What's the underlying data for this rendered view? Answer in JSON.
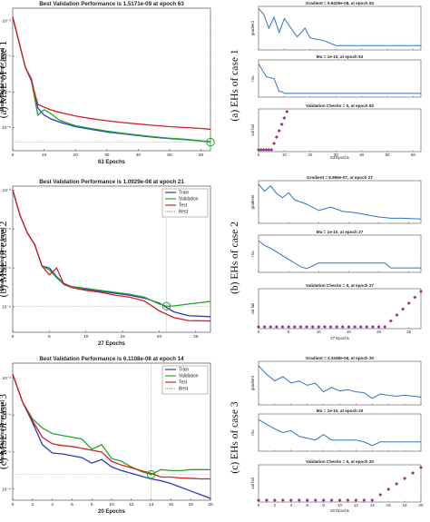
{
  "chart_data": [
    {
      "id": "mse1",
      "type": "line",
      "title": "Best Validation Performance is 1.5171e-09 at epoch 63",
      "side_label": "(a) MSE of Case 1",
      "xlabel": "63 Epochs",
      "ylabel": "Mean Squared Error  (mse)",
      "xlim": [
        0,
        63
      ],
      "ylim_log10": [
        -9.3,
        -1.3
      ],
      "log_y": true,
      "xticks": [
        0,
        10,
        20,
        30,
        40,
        50,
        60
      ],
      "yticks": [
        {
          "v": -2,
          "label": "10⁻²"
        },
        {
          "v": -4,
          "label": "10⁻⁴"
        },
        {
          "v": -6,
          "label": "10⁻⁶"
        },
        {
          "v": -8,
          "label": "10⁻⁸"
        }
      ],
      "legend": [],
      "best_epoch": 63,
      "best_value_log10": -8.82,
      "colors": {
        "Train": "#2b3cb4",
        "Validation": "#22a52e",
        "Test": "#d61f26",
        "Best": "#9a9a9a"
      },
      "series": [
        {
          "name": "Train",
          "x": [
            0,
            2,
            4,
            6,
            8,
            10,
            12,
            15,
            20,
            25,
            30,
            35,
            40,
            45,
            50,
            55,
            60,
            63
          ],
          "y": [
            -1.8,
            -3.2,
            -4.6,
            -5.3,
            -6.9,
            -7.3,
            -7.5,
            -7.7,
            -7.95,
            -8.1,
            -8.25,
            -8.35,
            -8.45,
            -8.55,
            -8.62,
            -8.68,
            -8.75,
            -8.8
          ]
        },
        {
          "name": "Validation",
          "x": [
            0,
            2,
            4,
            6,
            8,
            10,
            12,
            15,
            20,
            25,
            30,
            35,
            40,
            45,
            50,
            55,
            60,
            63
          ],
          "y": [
            -1.8,
            -3.2,
            -4.6,
            -5.4,
            -7.3,
            -7.0,
            -7.2,
            -7.6,
            -7.9,
            -8.05,
            -8.2,
            -8.32,
            -8.42,
            -8.52,
            -8.6,
            -8.66,
            -8.74,
            -8.82
          ]
        },
        {
          "name": "Test",
          "x": [
            0,
            2,
            4,
            6,
            8,
            10,
            12,
            15,
            20,
            25,
            30,
            35,
            40,
            45,
            50,
            55,
            60,
            63
          ],
          "y": [
            -1.8,
            -3.2,
            -4.6,
            -5.4,
            -6.7,
            -6.85,
            -7.0,
            -7.15,
            -7.35,
            -7.5,
            -7.62,
            -7.72,
            -7.8,
            -7.88,
            -7.95,
            -8.0,
            -8.05,
            -8.1
          ]
        }
      ]
    },
    {
      "id": "mse2",
      "type": "line",
      "title": "Best Validation Performance is 1.0929e-08 at epoch 21",
      "side_label": "(b) MSE of case 2",
      "xlabel": "27 Epochs",
      "ylabel": "Mean Squared Error  (mse)",
      "xlim": [
        0,
        27
      ],
      "ylim_log10": [
        -9.3,
        -1.8
      ],
      "log_y": true,
      "xticks": [
        0,
        5,
        10,
        15,
        20,
        25
      ],
      "yticks": [
        {
          "v": -2,
          "label": "10⁻²"
        },
        {
          "v": -4,
          "label": "10⁻⁴"
        },
        {
          "v": -6,
          "label": "10⁻⁶"
        },
        {
          "v": -8,
          "label": "10⁻⁸"
        }
      ],
      "legend": [
        "Train",
        "Validation",
        "Test",
        "Best"
      ],
      "best_epoch": 21,
      "best_value_log10": -7.96,
      "colors": {
        "Train": "#2b3cb4",
        "Validation": "#22a52e",
        "Test": "#d61f26",
        "Best": "#9a9a9a"
      },
      "series": [
        {
          "name": "Train",
          "x": [
            0,
            1,
            2,
            3,
            4,
            5,
            6,
            7,
            8,
            10,
            12,
            14,
            16,
            18,
            20,
            22,
            24,
            27
          ],
          "y": [
            -2.0,
            -3.3,
            -4.2,
            -4.8,
            -5.9,
            -6.0,
            -6.45,
            -6.8,
            -6.95,
            -7.1,
            -7.2,
            -7.3,
            -7.4,
            -7.55,
            -7.8,
            -8.25,
            -8.45,
            -8.5
          ]
        },
        {
          "name": "Validation",
          "x": [
            0,
            1,
            2,
            3,
            4,
            5,
            6,
            7,
            8,
            10,
            12,
            14,
            16,
            18,
            20,
            21,
            22,
            24,
            27
          ],
          "y": [
            -2.0,
            -3.3,
            -4.2,
            -4.8,
            -5.9,
            -6.1,
            -6.5,
            -6.85,
            -6.95,
            -7.05,
            -7.15,
            -7.25,
            -7.35,
            -7.5,
            -7.85,
            -7.96,
            -7.95,
            -7.85,
            -7.72
          ]
        },
        {
          "name": "Test",
          "x": [
            0,
            1,
            2,
            3,
            4,
            5,
            6,
            7,
            8,
            10,
            12,
            14,
            16,
            18,
            20,
            22,
            24,
            27
          ],
          "y": [
            -2.0,
            -3.3,
            -4.2,
            -4.8,
            -5.9,
            -6.35,
            -6.0,
            -6.85,
            -7.0,
            -7.15,
            -7.25,
            -7.4,
            -7.5,
            -7.7,
            -8.2,
            -8.55,
            -8.7,
            -8.72
          ]
        }
      ]
    },
    {
      "id": "mse3",
      "type": "line",
      "title": "Best Validation Performance is 6.1108e-08 at epoch 14",
      "side_label": "(c) MSE of case 3",
      "xlabel": "20 Epochs",
      "ylabel": "Mean Squared Error  (mse)",
      "xlim": [
        0,
        20
      ],
      "ylim_log10": [
        -8.6,
        -1.2
      ],
      "log_y": true,
      "xticks": [
        0,
        2,
        4,
        6,
        8,
        10,
        12,
        14,
        16,
        18,
        20
      ],
      "yticks": [
        {
          "v": -2,
          "label": "10⁻²"
        },
        {
          "v": -4,
          "label": "10⁻⁴"
        },
        {
          "v": -6,
          "label": "10⁻⁶"
        },
        {
          "v": -8,
          "label": "10⁻⁸"
        }
      ],
      "legend": [
        "Train",
        "Validation",
        "Test",
        "Best"
      ],
      "best_epoch": 14,
      "best_value_log10": -7.21,
      "colors": {
        "Train": "#2b3cb4",
        "Validation": "#22a52e",
        "Test": "#d61f26",
        "Best": "#9a9a9a"
      },
      "series": [
        {
          "name": "Train",
          "x": [
            0,
            1,
            2,
            3,
            4,
            5,
            6,
            7,
            8,
            9,
            10,
            11,
            12,
            13,
            14,
            15,
            16,
            17,
            18,
            19,
            20
          ],
          "y": [
            -1.8,
            -3.3,
            -4.4,
            -5.6,
            -6.05,
            -6.1,
            -6.2,
            -6.3,
            -6.6,
            -6.4,
            -6.8,
            -7.0,
            -7.15,
            -7.3,
            -7.45,
            -7.55,
            -7.7,
            -7.9,
            -8.1,
            -8.3,
            -8.5
          ]
        },
        {
          "name": "Validation",
          "x": [
            0,
            1,
            2,
            3,
            4,
            5,
            6,
            7,
            8,
            9,
            10,
            11,
            12,
            13,
            14,
            15,
            16,
            17,
            18,
            19,
            20
          ],
          "y": [
            -1.8,
            -3.3,
            -4.2,
            -4.7,
            -5.0,
            -5.1,
            -5.2,
            -5.3,
            -5.85,
            -5.6,
            -6.35,
            -6.5,
            -6.8,
            -7.05,
            -7.21,
            -6.95,
            -7.0,
            -7.0,
            -6.95,
            -6.95,
            -6.95
          ]
        },
        {
          "name": "Test",
          "x": [
            0,
            1,
            2,
            3,
            4,
            5,
            6,
            7,
            8,
            9,
            10,
            11,
            12,
            13,
            14,
            15,
            16,
            17,
            18,
            19,
            20
          ],
          "y": [
            -1.8,
            -3.3,
            -4.3,
            -5.2,
            -5.55,
            -5.65,
            -5.7,
            -5.8,
            -5.9,
            -6.0,
            -6.5,
            -6.7,
            -6.85,
            -7.0,
            -7.15,
            -7.35,
            -7.35,
            -7.4,
            -7.42,
            -7.45,
            -7.45
          ]
        }
      ]
    }
  ],
  "eh_data": [
    {
      "id": "eh1",
      "side_label": "(a) EHs of case 1",
      "xlabel": "63 Epochs",
      "xlim": [
        0,
        63
      ],
      "xticks": [
        0,
        10,
        20,
        30,
        40,
        50,
        60
      ],
      "gradient": {
        "title": "Gradient = 9.8428e-08, at epoch 63",
        "ylabel": "gradient",
        "x": [
          0,
          2,
          4,
          6,
          8,
          10,
          12,
          15,
          18,
          20,
          22,
          25,
          28,
          30,
          35,
          40,
          50,
          63
        ],
        "y": [
          0.95,
          0.82,
          0.5,
          0.75,
          0.4,
          0.72,
          0.55,
          0.3,
          0.5,
          0.28,
          0.25,
          0.22,
          0.15,
          0.1,
          0.1,
          0.1,
          0.1,
          0.1
        ]
      },
      "mu": {
        "title": "Mu = 1e-10, at epoch 63",
        "ylabel": "mu",
        "x": [
          0,
          3,
          6,
          8,
          9,
          10,
          11,
          12,
          63
        ],
        "y": [
          0.9,
          0.55,
          0.5,
          0.15,
          0.15,
          0.1,
          0.1,
          0.1,
          0.1
        ]
      },
      "checks": {
        "title": "Validation Checks = 0, at epoch 63",
        "ylabel": "val fail",
        "x": [
          0,
          1,
          2,
          3,
          4,
          5,
          6,
          7,
          8,
          9,
          10,
          11
        ],
        "y": [
          0,
          0,
          0,
          0,
          0,
          0,
          1,
          2,
          3,
          4,
          5,
          6
        ],
        "ymax": 6
      }
    },
    {
      "id": "eh2",
      "side_label": "(b) EHs of case 2",
      "xlabel": "27 Epochs",
      "xlim": [
        0,
        27
      ],
      "xticks": [
        0,
        5,
        10,
        15,
        20,
        25
      ],
      "gradient": {
        "title": "Gradient = 9.996e-07, at epoch 27",
        "ylabel": "gradient",
        "x": [
          0,
          1,
          2,
          3,
          4,
          5,
          6,
          7,
          8,
          10,
          12,
          14,
          16,
          18,
          20,
          22,
          24,
          27
        ],
        "y": [
          0.92,
          0.75,
          0.88,
          0.7,
          0.6,
          0.72,
          0.55,
          0.5,
          0.45,
          0.3,
          0.38,
          0.28,
          0.25,
          0.2,
          0.15,
          0.12,
          0.12,
          0.1
        ]
      },
      "mu": {
        "title": "Mu = 1e-10, at epoch 27",
        "ylabel": "mu",
        "x": [
          0,
          1,
          2,
          3,
          4,
          5,
          6,
          7,
          8,
          10,
          12,
          14,
          16,
          18,
          20,
          21,
          22,
          24,
          27
        ],
        "y": [
          0.85,
          0.72,
          0.65,
          0.55,
          0.45,
          0.35,
          0.25,
          0.15,
          0.1,
          0.25,
          0.25,
          0.25,
          0.25,
          0.25,
          0.25,
          0.25,
          0.12,
          0.12,
          0.12
        ]
      },
      "checks": {
        "title": "Validation Checks = 6, at epoch 27",
        "ylabel": "val fail",
        "x": [
          0,
          1,
          2,
          3,
          4,
          5,
          6,
          7,
          8,
          9,
          10,
          11,
          12,
          13,
          14,
          15,
          16,
          17,
          18,
          19,
          20,
          21,
          22,
          23,
          24,
          25,
          26,
          27
        ],
        "y": [
          0,
          0,
          0,
          0,
          0,
          0,
          0,
          0,
          0,
          0,
          0,
          0,
          0,
          0,
          0,
          0,
          0,
          0,
          0,
          0,
          0,
          0,
          1,
          2,
          3,
          4,
          5,
          6
        ],
        "ymax": 6
      }
    },
    {
      "id": "eh3",
      "side_label": "(c) EHs of case 3",
      "xlabel": "20 Epochs",
      "xlim": [
        0,
        20
      ],
      "xticks": [
        0,
        2,
        4,
        6,
        8,
        10,
        12,
        14,
        16,
        18,
        20
      ],
      "gradient": {
        "title": "Gradient = 3.3348e-06, at epoch 20",
        "ylabel": "gradient",
        "x": [
          0,
          1,
          2,
          3,
          4,
          5,
          6,
          7,
          8,
          9,
          10,
          11,
          12,
          13,
          14,
          15,
          16,
          17,
          18,
          19,
          20
        ],
        "y": [
          0.9,
          0.7,
          0.55,
          0.65,
          0.5,
          0.55,
          0.45,
          0.5,
          0.3,
          0.4,
          0.32,
          0.35,
          0.3,
          0.28,
          0.15,
          0.25,
          0.22,
          0.2,
          0.22,
          0.2,
          0.18
        ]
      },
      "mu": {
        "title": "Mu = 1e-10, at epoch 20",
        "ylabel": "mu",
        "x": [
          0,
          1,
          2,
          3,
          4,
          5,
          6,
          7,
          8,
          9,
          10,
          11,
          12,
          13,
          14,
          15,
          16,
          17,
          18,
          19,
          20
        ],
        "y": [
          0.85,
          0.72,
          0.6,
          0.5,
          0.55,
          0.4,
          0.35,
          0.3,
          0.45,
          0.3,
          0.3,
          0.3,
          0.3,
          0.25,
          0.15,
          0.25,
          0.25,
          0.25,
          0.25,
          0.25,
          0.25
        ]
      },
      "checks": {
        "title": "Validation Checks = 6, at epoch 20",
        "ylabel": "val fail",
        "x": [
          0,
          1,
          2,
          3,
          4,
          5,
          6,
          7,
          8,
          9,
          10,
          11,
          12,
          13,
          14,
          15,
          16,
          17,
          18,
          19,
          20
        ],
        "y": [
          0,
          0,
          0,
          0,
          0,
          0,
          0,
          0,
          0,
          0,
          0,
          0,
          0,
          0,
          0,
          1,
          2,
          3,
          4,
          5,
          6
        ],
        "ymax": 6
      }
    }
  ]
}
